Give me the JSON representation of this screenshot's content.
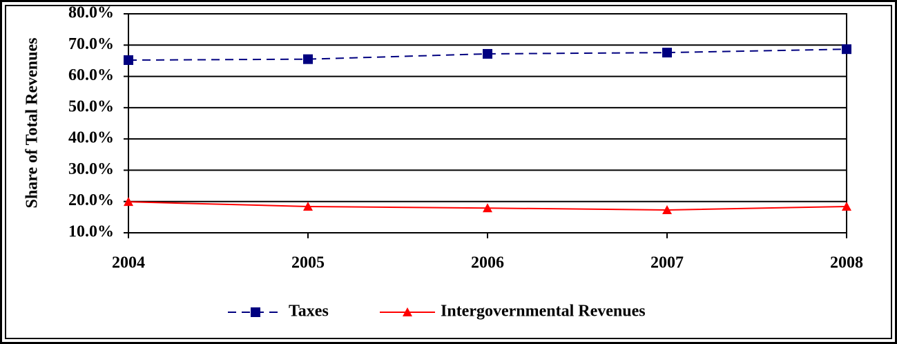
{
  "chart_data": {
    "type": "line",
    "y_label": "Share of Total Revenues",
    "categories": [
      "2004",
      "2005",
      "2006",
      "2007",
      "2008"
    ],
    "series": [
      {
        "name": "Taxes",
        "color": "#000080",
        "dash": true,
        "marker": "square",
        "values": [
          65.2,
          65.5,
          67.2,
          67.6,
          68.7
        ]
      },
      {
        "name": "Intergovernmental Revenues",
        "color": "#ff0000",
        "dash": false,
        "marker": "triangle",
        "values": [
          19.9,
          18.4,
          17.9,
          17.3,
          18.4
        ]
      }
    ],
    "ylim": [
      10,
      80
    ],
    "yticks": [
      {
        "value": 10,
        "label": "10.0%"
      },
      {
        "value": 20,
        "label": "20.0%"
      },
      {
        "value": 30,
        "label": "30.0%"
      },
      {
        "value": 40,
        "label": "40.0%"
      },
      {
        "value": 50,
        "label": "50.0%"
      },
      {
        "value": 60,
        "label": "60.0%"
      },
      {
        "value": 70,
        "label": "70.0%"
      },
      {
        "value": 80,
        "label": "80.0%"
      }
    ],
    "grid": true,
    "legend": "bottom"
  }
}
